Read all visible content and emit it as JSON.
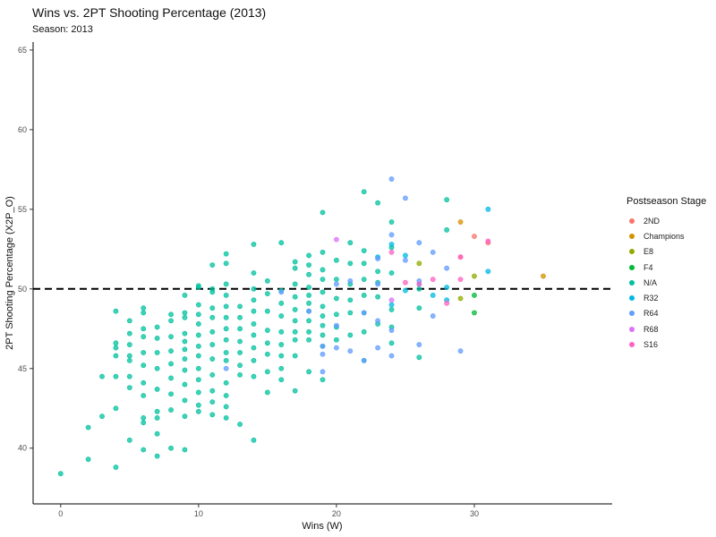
{
  "title": "Wins vs. 2PT Shooting Percentage  (2013)",
  "subtitle": "Season: 2013",
  "chart_data": {
    "type": "scatter",
    "xlabel": "Wins (W)",
    "ylabel": "2PT Shooting Percentage (X2P_O)",
    "xlim": [
      -2,
      40
    ],
    "ylim": [
      36.5,
      65.5
    ],
    "xticks": [
      0,
      10,
      20,
      30
    ],
    "yticks": [
      40,
      45,
      50,
      55,
      60,
      65
    ],
    "reference_line": {
      "y": 50,
      "style": "dashed"
    },
    "grid": false,
    "legend": {
      "title": "Postseason Stage",
      "placement": "right",
      "entries": [
        {
          "label": "2ND",
          "color": "#F8766D"
        },
        {
          "label": "Champions",
          "color": "#D39200"
        },
        {
          "label": "E8",
          "color": "#93AA00"
        },
        {
          "label": "F4",
          "color": "#00BA38"
        },
        {
          "label": "N/A",
          "color": "#00C19F"
        },
        {
          "label": "R32",
          "color": "#00B9E3"
        },
        {
          "label": "R64",
          "color": "#619CFF"
        },
        {
          "label": "R68",
          "color": "#DB72FB"
        },
        {
          "label": "S16",
          "color": "#FF61C3"
        }
      ]
    },
    "series": [
      {
        "name": "2ND",
        "points": [
          [
            30,
            53.3
          ],
          [
            31,
            52.9
          ],
          [
            29,
            52.0
          ]
        ]
      },
      {
        "name": "Champions",
        "points": [
          [
            35,
            50.8
          ],
          [
            29,
            54.2
          ]
        ]
      },
      {
        "name": "E8",
        "points": [
          [
            26,
            51.6
          ],
          [
            30,
            50.8
          ],
          [
            29,
            49.4
          ]
        ]
      },
      {
        "name": "F4",
        "points": [
          [
            30,
            49.6
          ],
          [
            30,
            48.5
          ]
        ]
      },
      {
        "name": "N/A",
        "points": [
          [
            0,
            38.4
          ],
          [
            2,
            39.3
          ],
          [
            2,
            41.3
          ],
          [
            3,
            42.0
          ],
          [
            3,
            44.5
          ],
          [
            4,
            38.8
          ],
          [
            4,
            42.5
          ],
          [
            4,
            44.5
          ],
          [
            4,
            45.8
          ],
          [
            4,
            46.3
          ],
          [
            4,
            46.6
          ],
          [
            4,
            48.6
          ],
          [
            5,
            40.5
          ],
          [
            5,
            43.8
          ],
          [
            5,
            44.5
          ],
          [
            5,
            45.5
          ],
          [
            5,
            45.8
          ],
          [
            5,
            46.5
          ],
          [
            5,
            47.2
          ],
          [
            5,
            48.0
          ],
          [
            6,
            39.9
          ],
          [
            6,
            41.6
          ],
          [
            6,
            41.9
          ],
          [
            6,
            43.3
          ],
          [
            6,
            44.1
          ],
          [
            6,
            45.2
          ],
          [
            6,
            46.0
          ],
          [
            6,
            47.0
          ],
          [
            6,
            47.5
          ],
          [
            6,
            48.5
          ],
          [
            6,
            48.8
          ],
          [
            7,
            39.5
          ],
          [
            7,
            40.9
          ],
          [
            7,
            41.9
          ],
          [
            7,
            42.3
          ],
          [
            7,
            43.7
          ],
          [
            7,
            45.0
          ],
          [
            7,
            46.0
          ],
          [
            7,
            46.9
          ],
          [
            7,
            47.6
          ],
          [
            8,
            40.0
          ],
          [
            8,
            42.4
          ],
          [
            8,
            43.4
          ],
          [
            8,
            44.4
          ],
          [
            8,
            45.3
          ],
          [
            8,
            46.1
          ],
          [
            8,
            47.0
          ],
          [
            8,
            48.0
          ],
          [
            8,
            48.4
          ],
          [
            9,
            39.9
          ],
          [
            9,
            42.0
          ],
          [
            9,
            43.0
          ],
          [
            9,
            44.0
          ],
          [
            9,
            44.9
          ],
          [
            9,
            45.6
          ],
          [
            9,
            46.2
          ],
          [
            9,
            46.7
          ],
          [
            9,
            47.2
          ],
          [
            9,
            48.2
          ],
          [
            9,
            48.5
          ],
          [
            9,
            49.6
          ],
          [
            10,
            42.3
          ],
          [
            10,
            42.7
          ],
          [
            10,
            43.5
          ],
          [
            10,
            44.3
          ],
          [
            10,
            45.0
          ],
          [
            10,
            45.8
          ],
          [
            10,
            46.4
          ],
          [
            10,
            47.1
          ],
          [
            10,
            47.8
          ],
          [
            10,
            48.4
          ],
          [
            10,
            49.0
          ],
          [
            10,
            50.1
          ],
          [
            10,
            50.2
          ],
          [
            11,
            42.1
          ],
          [
            11,
            42.9
          ],
          [
            11,
            43.6
          ],
          [
            11,
            44.6
          ],
          [
            11,
            45.6
          ],
          [
            11,
            46.5
          ],
          [
            11,
            47.3
          ],
          [
            11,
            48.2
          ],
          [
            11,
            48.8
          ],
          [
            11,
            49.8
          ],
          [
            11,
            50.0
          ],
          [
            11,
            51.5
          ],
          [
            12,
            41.9
          ],
          [
            12,
            42.6
          ],
          [
            12,
            43.3
          ],
          [
            12,
            44.1
          ],
          [
            12,
            45.5
          ],
          [
            12,
            46.0
          ],
          [
            12,
            46.8
          ],
          [
            12,
            47.5
          ],
          [
            12,
            48.2
          ],
          [
            12,
            48.9
          ],
          [
            12,
            49.6
          ],
          [
            12,
            50.3
          ],
          [
            12,
            51.6
          ],
          [
            12,
            52.2
          ],
          [
            13,
            41.5
          ],
          [
            13,
            44.6
          ],
          [
            13,
            45.2
          ],
          [
            13,
            46.0
          ],
          [
            13,
            46.7
          ],
          [
            13,
            47.5
          ],
          [
            13,
            48.2
          ],
          [
            13,
            48.9
          ],
          [
            14,
            40.5
          ],
          [
            14,
            44.5
          ],
          [
            14,
            45.5
          ],
          [
            14,
            46.3
          ],
          [
            14,
            47.1
          ],
          [
            14,
            47.8
          ],
          [
            14,
            48.6
          ],
          [
            14,
            49.3
          ],
          [
            14,
            50.0
          ],
          [
            14,
            51.0
          ],
          [
            14,
            52.8
          ],
          [
            15,
            43.5
          ],
          [
            15,
            44.8
          ],
          [
            15,
            45.9
          ],
          [
            15,
            46.6
          ],
          [
            15,
            47.4
          ],
          [
            15,
            48.6
          ],
          [
            15,
            49.7
          ],
          [
            15,
            50.5
          ],
          [
            16,
            44.3
          ],
          [
            16,
            45.0
          ],
          [
            16,
            45.8
          ],
          [
            16,
            46.5
          ],
          [
            16,
            47.3
          ],
          [
            16,
            48.3
          ],
          [
            16,
            49.1
          ],
          [
            16,
            49.9
          ],
          [
            16,
            52.9
          ],
          [
            17,
            43.6
          ],
          [
            17,
            45.8
          ],
          [
            17,
            46.8
          ],
          [
            17,
            47.3
          ],
          [
            17,
            48.0
          ],
          [
            17,
            48.7
          ],
          [
            17,
            49.5
          ],
          [
            17,
            50.3
          ],
          [
            17,
            51.3
          ],
          [
            17,
            51.7
          ],
          [
            18,
            44.8
          ],
          [
            18,
            46.8
          ],
          [
            18,
            47.3
          ],
          [
            18,
            48.0
          ],
          [
            18,
            48.6
          ],
          [
            18,
            49.1
          ],
          [
            18,
            49.6
          ],
          [
            18,
            50.1
          ],
          [
            18,
            50.9
          ],
          [
            18,
            51.5
          ],
          [
            18,
            52.1
          ],
          [
            19,
            44.3
          ],
          [
            19,
            46.4
          ],
          [
            19,
            47.1
          ],
          [
            19,
            47.7
          ],
          [
            19,
            48.3
          ],
          [
            19,
            48.9
          ],
          [
            19,
            49.8
          ],
          [
            19,
            50.6
          ],
          [
            19,
            51.2
          ],
          [
            19,
            52.3
          ],
          [
            19,
            54.8
          ],
          [
            20,
            46.8
          ],
          [
            20,
            47.6
          ],
          [
            20,
            48.4
          ],
          [
            20,
            49.4
          ],
          [
            20,
            50.6
          ],
          [
            20,
            51.8
          ],
          [
            21,
            47.1
          ],
          [
            21,
            48.5
          ],
          [
            21,
            49.3
          ],
          [
            21,
            50.3
          ],
          [
            21,
            51.6
          ],
          [
            21,
            52.9
          ],
          [
            22,
            45.5
          ],
          [
            22,
            47.3
          ],
          [
            22,
            48.5
          ],
          [
            22,
            49.6
          ],
          [
            22,
            50.6
          ],
          [
            22,
            51.6
          ],
          [
            22,
            52.4
          ],
          [
            22,
            56.1
          ],
          [
            23,
            47.8
          ],
          [
            23,
            49.5
          ],
          [
            23,
            50.4
          ],
          [
            23,
            51.1
          ],
          [
            23,
            55.4
          ],
          [
            24,
            46.6
          ],
          [
            24,
            47.6
          ],
          [
            24,
            48.7
          ],
          [
            24,
            51.0
          ],
          [
            24,
            52.6
          ],
          [
            24,
            54.2
          ],
          [
            26,
            45.7
          ],
          [
            26,
            48.8
          ],
          [
            26,
            50.0
          ],
          [
            28,
            53.7
          ],
          [
            28,
            55.6
          ]
        ]
      },
      {
        "name": "R32",
        "points": [
          [
            23,
            52.0
          ],
          [
            24,
            52.8
          ],
          [
            24,
            49.0
          ],
          [
            25,
            52.1
          ],
          [
            26,
            50.3
          ],
          [
            27,
            49.6
          ],
          [
            28,
            49.3
          ],
          [
            28,
            50.1
          ],
          [
            31,
            55.0
          ],
          [
            31,
            51.1
          ],
          [
            25,
            49.9
          ]
        ]
      },
      {
        "name": "R64",
        "points": [
          [
            12,
            45.0
          ],
          [
            16,
            49.8
          ],
          [
            18,
            48.6
          ],
          [
            19,
            44.8
          ],
          [
            19,
            45.9
          ],
          [
            19,
            46.4
          ],
          [
            20,
            46.3
          ],
          [
            20,
            47.7
          ],
          [
            20,
            50.3
          ],
          [
            21,
            46.1
          ],
          [
            21,
            50.5
          ],
          [
            22,
            45.5
          ],
          [
            22,
            48.5
          ],
          [
            23,
            46.3
          ],
          [
            23,
            48.0
          ],
          [
            23,
            50.3
          ],
          [
            23,
            51.9
          ],
          [
            24,
            45.8
          ],
          [
            24,
            47.4
          ],
          [
            24,
            53.4
          ],
          [
            24,
            56.9
          ],
          [
            25,
            51.8
          ],
          [
            25,
            55.7
          ],
          [
            26,
            46.5
          ],
          [
            26,
            50.5
          ],
          [
            26,
            52.9
          ],
          [
            27,
            48.3
          ],
          [
            27,
            52.3
          ],
          [
            28,
            51.3
          ],
          [
            29,
            46.1
          ]
        ]
      },
      {
        "name": "R68",
        "points": [
          [
            20,
            53.1
          ],
          [
            24,
            49.3
          ]
        ]
      },
      {
        "name": "S16",
        "points": [
          [
            24,
            52.3
          ],
          [
            25,
            50.4
          ],
          [
            26,
            50.3
          ],
          [
            27,
            50.6
          ],
          [
            28,
            49.1
          ],
          [
            29,
            50.6
          ],
          [
            29,
            52.0
          ],
          [
            31,
            53.0
          ]
        ]
      }
    ]
  }
}
